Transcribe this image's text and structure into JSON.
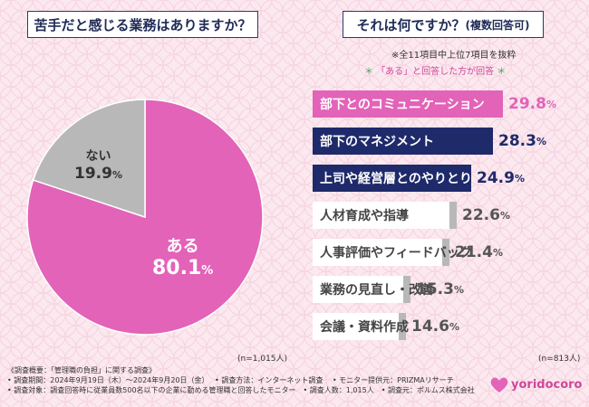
{
  "left_title": "苦手だと感じる業務はありますか？",
  "right_title": "それは何ですか？",
  "right_title_sub": "(複数回答可)",
  "note_top": "※全11項目中上位7項目を抜粋",
  "note_pink": "「ある」と回答した方が回答",
  "note_stars": [
    "＊",
    "＊"
  ],
  "n_left": "(n=1,015人)",
  "n_right": "(n=813人)",
  "colors": {
    "pink": "#e263b8",
    "navy": "#1f2a6b",
    "gray": "#b8b8b8"
  },
  "chart_data": [
    {
      "type": "pie",
      "title": "苦手だと感じる業務はありますか？",
      "slices": [
        {
          "label": "ある",
          "value": 80.1,
          "display": "80.1",
          "unit": "%",
          "color": "#e263b8"
        },
        {
          "label": "ない",
          "value": 19.9,
          "display": "19.9",
          "unit": "%",
          "color": "#b8b8b8"
        }
      ]
    },
    {
      "type": "bar",
      "title": "それは何ですか？(複数回答可)",
      "categories": [
        "部下とのコミュニケーション",
        "部下のマネジメント",
        "上司や経営層とのやりとり",
        "人材育成や指導",
        "人事評価やフィードバック",
        "業務の見直し・改善",
        "会議・資料作成"
      ],
      "values": [
        29.8,
        28.3,
        24.9,
        22.6,
        21.4,
        15.3,
        14.6
      ],
      "display": [
        "29.8",
        "28.3",
        "24.9",
        "22.6",
        "21.4",
        "15.3",
        "14.6"
      ],
      "unit": "%",
      "styles": [
        "pink",
        "navy",
        "navy",
        "gray",
        "gray",
        "gray",
        "gray"
      ]
    }
  ],
  "footer": {
    "line1": "《調査概要：「管理職の負担」に関する調査》",
    "line2": "• 調査期間：2024年9月19日（木）～2024年9月20日（金）　 • 調査方法：インターネット調査　 • モニター提供元：PRIZMAリサーチ",
    "line3": "• 調査対象：調査回答時に従業員数500名以下の企業に勤める管理職と回答したモニター　• 調査人数：1,015人　• 調査元：ポルムス株式会社"
  },
  "logo_text": "yoridocoro"
}
